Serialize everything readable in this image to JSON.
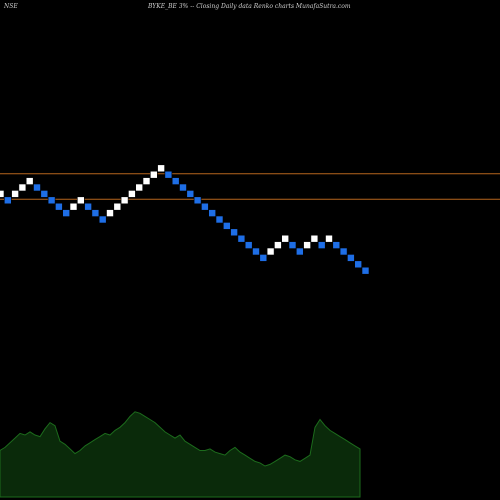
{
  "header": {
    "exchange": "NSE",
    "caption": "BYKE_BE 3% -- Closing Daily data Renko charts MunafaSutra.com"
  },
  "colors": {
    "background": "#000000",
    "up_brick": "#ffffff",
    "down_brick": "#1e6ee6",
    "reference_line": "#b5651d",
    "volume_fill": "#0a2a0a",
    "volume_line": "#1c6b1c",
    "label": "#bfbfbf"
  },
  "chart_data": [
    {
      "type": "renko",
      "bricks": [
        {
          "dir": "up",
          "value": 9
        },
        {
          "dir": "down",
          "value": 8
        },
        {
          "dir": "up",
          "value": 9
        },
        {
          "dir": "up",
          "value": 10
        },
        {
          "dir": "up",
          "value": 11
        },
        {
          "dir": "down",
          "value": 10
        },
        {
          "dir": "down",
          "value": 9
        },
        {
          "dir": "down",
          "value": 8
        },
        {
          "dir": "down",
          "value": 7
        },
        {
          "dir": "down",
          "value": 6
        },
        {
          "dir": "up",
          "value": 7
        },
        {
          "dir": "up",
          "value": 8
        },
        {
          "dir": "down",
          "value": 7
        },
        {
          "dir": "down",
          "value": 6
        },
        {
          "dir": "down",
          "value": 5
        },
        {
          "dir": "up",
          "value": 6
        },
        {
          "dir": "up",
          "value": 7
        },
        {
          "dir": "up",
          "value": 8
        },
        {
          "dir": "up",
          "value": 9
        },
        {
          "dir": "up",
          "value": 10
        },
        {
          "dir": "up",
          "value": 11
        },
        {
          "dir": "up",
          "value": 12
        },
        {
          "dir": "up",
          "value": 13
        },
        {
          "dir": "down",
          "value": 12
        },
        {
          "dir": "down",
          "value": 11
        },
        {
          "dir": "down",
          "value": 10
        },
        {
          "dir": "down",
          "value": 9
        },
        {
          "dir": "down",
          "value": 8
        },
        {
          "dir": "down",
          "value": 7
        },
        {
          "dir": "down",
          "value": 6
        },
        {
          "dir": "down",
          "value": 5
        },
        {
          "dir": "down",
          "value": 4
        },
        {
          "dir": "down",
          "value": 3
        },
        {
          "dir": "down",
          "value": 2
        },
        {
          "dir": "down",
          "value": 1
        },
        {
          "dir": "down",
          "value": 0
        },
        {
          "dir": "down",
          "value": -1
        },
        {
          "dir": "up",
          "value": 0
        },
        {
          "dir": "up",
          "value": 1
        },
        {
          "dir": "up",
          "value": 2
        },
        {
          "dir": "down",
          "value": 1
        },
        {
          "dir": "down",
          "value": 0
        },
        {
          "dir": "up",
          "value": 1
        },
        {
          "dir": "up",
          "value": 2
        },
        {
          "dir": "down",
          "value": 1
        },
        {
          "dir": "up",
          "value": 2
        },
        {
          "dir": "down",
          "value": 1
        },
        {
          "dir": "down",
          "value": 0
        },
        {
          "dir": "down",
          "value": -1
        },
        {
          "dir": "down",
          "value": -2
        },
        {
          "dir": "down",
          "value": -3
        }
      ],
      "reference_lines": [
        12,
        8
      ],
      "grid": false
    },
    {
      "type": "area",
      "values": [
        30,
        32,
        35,
        38,
        41,
        40,
        42,
        40,
        39,
        44,
        48,
        46,
        36,
        34,
        31,
        28,
        30,
        33,
        35,
        37,
        39,
        41,
        40,
        43,
        45,
        48,
        52,
        55,
        54,
        52,
        50,
        48,
        45,
        42,
        40,
        38,
        40,
        36,
        34,
        32,
        30,
        30,
        31,
        29,
        28,
        27,
        30,
        32,
        29,
        27,
        25,
        23,
        22,
        20,
        21,
        23,
        25,
        27,
        26,
        24,
        23,
        25,
        27,
        45,
        50,
        46,
        43,
        41,
        39,
        37,
        35,
        33,
        31
      ],
      "grid": false
    }
  ]
}
